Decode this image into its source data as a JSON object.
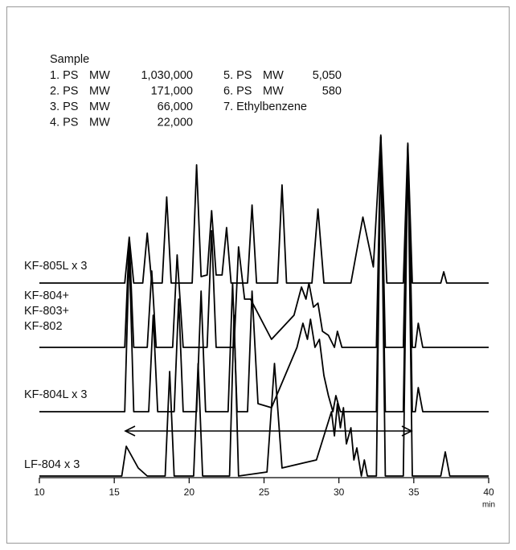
{
  "chart_data": {
    "type": "line",
    "sample": {
      "title": "Sample",
      "items": [
        [
          "1. PS",
          "MW",
          "1,030,000"
        ],
        [
          "2. PS",
          "MW",
          "171,000"
        ],
        [
          "3. PS",
          "MW",
          "66,000"
        ],
        [
          "4. PS",
          "MW",
          "22,000"
        ],
        [
          "5. PS",
          "MW",
          "5,050"
        ],
        [
          "6. PS",
          "MW",
          "580"
        ],
        [
          "7. Ethylbenzene"
        ]
      ]
    },
    "x_label": "min",
    "xlim": [
      10,
      40
    ],
    "xticks": [
      10,
      15,
      20,
      25,
      30,
      35,
      40
    ],
    "series": [
      {
        "name": "KF-805L x 3",
        "color": "#000000",
        "x": [
          10,
          15.7,
          16.0,
          16.3,
          16.9,
          17.2,
          17.5,
          18.2,
          18.5,
          18.8,
          20.2,
          20.5,
          20.8,
          21.2,
          21.5,
          21.8,
          22.2,
          22.5,
          22.8,
          23.9,
          24.2,
          24.5,
          25.9,
          26.2,
          26.5,
          28.2,
          28.6,
          29.0,
          30.8,
          31.6,
          32.3,
          32.8,
          33.2,
          34.3,
          34.6,
          34.9,
          36.8,
          37.0,
          37.2,
          40
        ],
        "values": [
          0,
          0,
          57,
          0,
          0,
          62,
          0,
          0,
          107,
          0,
          0,
          147,
          8,
          10,
          90,
          10,
          10,
          69,
          0,
          0,
          97,
          0,
          0,
          122,
          0,
          0,
          92,
          0,
          0,
          82,
          20,
          184,
          0,
          0,
          174,
          0,
          0,
          14,
          0,
          0
        ]
      },
      {
        "name": [
          "KF-804+",
          "KF-803+",
          "KF-802"
        ],
        "color": "#000000",
        "x": [
          10,
          15.7,
          16.0,
          16.3,
          17.2,
          17.5,
          17.8,
          18.9,
          19.2,
          19.6,
          21.2,
          21.5,
          21.8,
          23.0,
          23.3,
          23.7,
          24.1,
          25.5,
          27.0,
          27.5,
          27.8,
          28.0,
          28.3,
          28.6,
          28.9,
          29.3,
          29.7,
          29.9,
          30.2,
          32.5,
          32.8,
          33.1,
          34.3,
          34.6,
          34.9,
          35.1,
          35.3,
          35.6,
          40
        ],
        "values": [
          0,
          0,
          135,
          0,
          0,
          95,
          0,
          0,
          115,
          0,
          0,
          145,
          0,
          0,
          125,
          60,
          60,
          10,
          40,
          75,
          60,
          80,
          50,
          55,
          20,
          15,
          0,
          20,
          0,
          0,
          262,
          0,
          0,
          252,
          0,
          0,
          30,
          0,
          0
        ]
      },
      {
        "name": "KF-804L x 3",
        "color": "#000000",
        "x": [
          10,
          15.7,
          16.0,
          16.3,
          17.3,
          17.6,
          17.9,
          19.0,
          19.3,
          19.6,
          20.5,
          20.8,
          21.1,
          22.6,
          22.9,
          23.2,
          23.9,
          24.2,
          24.6,
          25.5,
          27.2,
          27.6,
          27.9,
          28.1,
          28.4,
          28.7,
          29.0,
          29.3,
          29.6,
          29.8,
          30.1,
          32.5,
          32.8,
          33.1,
          34.3,
          34.6,
          34.9,
          35.1,
          35.3,
          35.6,
          40
        ],
        "values": [
          0,
          0,
          200,
          0,
          0,
          120,
          0,
          0,
          140,
          0,
          0,
          150,
          0,
          0,
          160,
          0,
          0,
          150,
          10,
          5,
          80,
          110,
          90,
          115,
          80,
          90,
          45,
          20,
          0,
          20,
          0,
          0,
          342,
          0,
          0,
          332,
          0,
          0,
          30,
          0,
          0
        ]
      },
      {
        "name": "LF-804 x 3",
        "color": "#000000",
        "x": [
          10,
          15.5,
          15.8,
          16.6,
          17.2,
          18.4,
          18.7,
          19.0,
          20.3,
          20.6,
          20.9,
          22.7,
          23.0,
          23.3,
          25.2,
          25.7,
          26.2,
          28.5,
          29.5,
          29.7,
          29.9,
          30.1,
          30.3,
          30.5,
          30.8,
          31.0,
          31.2,
          31.5,
          31.7,
          31.9,
          32.5,
          32.8,
          33.1,
          34.3,
          34.6,
          34.9,
          36.8,
          37.1,
          37.4,
          40
        ],
        "values": [
          0,
          0,
          37,
          10,
          0,
          0,
          130,
          0,
          0,
          140,
          0,
          0,
          200,
          0,
          5,
          140,
          10,
          20,
          80,
          50,
          90,
          60,
          85,
          40,
          60,
          20,
          35,
          0,
          20,
          0,
          0,
          422,
          0,
          0,
          412,
          0,
          0,
          30,
          0,
          0
        ]
      }
    ]
  }
}
